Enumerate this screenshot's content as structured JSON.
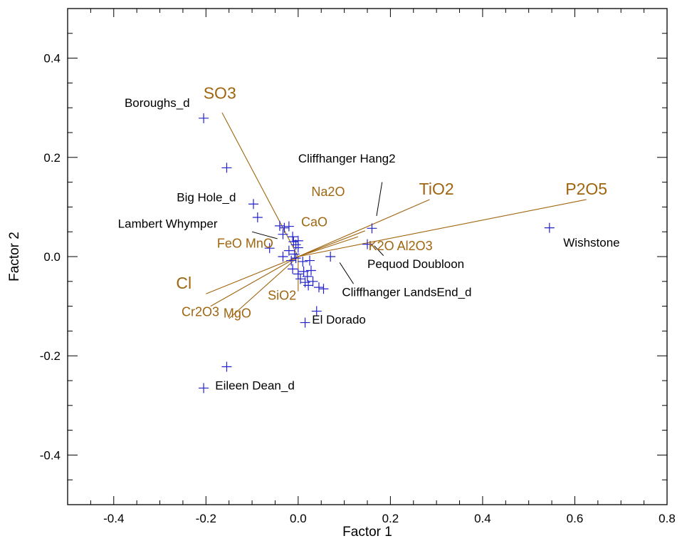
{
  "chart_data": {
    "type": "scatter",
    "title": "",
    "xlabel": "Factor 1",
    "ylabel": "Factor 2",
    "xlim": [
      -0.5,
      0.8
    ],
    "ylim": [
      -0.5,
      0.5
    ],
    "x_ticks": [
      -0.4,
      -0.2,
      0.0,
      0.2,
      0.4,
      0.6,
      0.8
    ],
    "x_tick_labels": [
      "-0.4",
      "-0.2",
      "0.0",
      "0.2",
      "0.4",
      "0.6",
      "0.8"
    ],
    "y_ticks": [
      -0.4,
      -0.2,
      0.0,
      0.2,
      0.4
    ],
    "y_tick_labels": [
      "-0.4",
      "-0.2",
      "0.0",
      "0.2",
      "0.4"
    ],
    "grid": false,
    "colors": {
      "points": "#2222cc",
      "vectors": "#a0650f",
      "sample_text": "#000000",
      "axes": "#000000"
    },
    "points": [
      {
        "x": -0.205,
        "y": 0.279
      },
      {
        "x": -0.155,
        "y": 0.179
      },
      {
        "x": -0.097,
        "y": 0.106
      },
      {
        "x": -0.088,
        "y": 0.079
      },
      {
        "x": -0.04,
        "y": 0.062
      },
      {
        "x": -0.03,
        "y": 0.058
      },
      {
        "x": -0.02,
        "y": 0.061
      },
      {
        "x": -0.033,
        "y": 0.045
      },
      {
        "x": -0.012,
        "y": 0.04
      },
      {
        "x": -0.01,
        "y": 0.03
      },
      {
        "x": 0.0,
        "y": 0.032
      },
      {
        "x": -0.005,
        "y": 0.024
      },
      {
        "x": -0.062,
        "y": 0.017
      },
      {
        "x": -0.02,
        "y": 0.012
      },
      {
        "x": -0.008,
        "y": 0.005
      },
      {
        "x": 0.0,
        "y": 0.018
      },
      {
        "x": -0.033,
        "y": 0.0
      },
      {
        "x": -0.015,
        "y": -0.008
      },
      {
        "x": -0.005,
        "y": -0.003
      },
      {
        "x": 0.01,
        "y": -0.01
      },
      {
        "x": 0.025,
        "y": -0.008
      },
      {
        "x": -0.012,
        "y": -0.025
      },
      {
        "x": 0.0,
        "y": -0.035
      },
      {
        "x": 0.012,
        "y": -0.03
      },
      {
        "x": 0.028,
        "y": -0.028
      },
      {
        "x": 0.02,
        "y": -0.04
      },
      {
        "x": 0.005,
        "y": -0.045
      },
      {
        "x": 0.015,
        "y": -0.052
      },
      {
        "x": 0.032,
        "y": -0.05
      },
      {
        "x": 0.022,
        "y": -0.058
      },
      {
        "x": 0.045,
        "y": -0.062
      },
      {
        "x": 0.055,
        "y": -0.065
      },
      {
        "x": 0.07,
        "y": 0.0
      },
      {
        "x": 0.16,
        "y": 0.057
      },
      {
        "x": 0.15,
        "y": 0.025
      },
      {
        "x": 0.04,
        "y": -0.11
      },
      {
        "x": 0.015,
        "y": -0.133
      },
      {
        "x": -0.155,
        "y": -0.222
      },
      {
        "x": -0.205,
        "y": -0.265
      },
      {
        "x": 0.545,
        "y": 0.058
      }
    ],
    "vectors": [
      {
        "label": "SO3",
        "x": -0.165,
        "y": 0.29,
        "label_x": -0.17,
        "label_y": 0.318,
        "font_size": 23
      },
      {
        "label": "Na2O",
        "x": 0.145,
        "y": 0.052,
        "label_x": 0.065,
        "label_y": 0.122,
        "font_size": 18
      },
      {
        "label": "TiO2",
        "x": 0.285,
        "y": 0.115,
        "label_x": 0.3,
        "label_y": 0.125,
        "font_size": 23
      },
      {
        "label": "P2O5",
        "x": 0.625,
        "y": 0.115,
        "label_x": 0.625,
        "label_y": 0.125,
        "font_size": 23
      },
      {
        "label": "CaO",
        "x": 0.13,
        "y": 0.04,
        "label_x": 0.035,
        "label_y": 0.061,
        "font_size": 18
      },
      {
        "label": "Cl",
        "x": -0.2,
        "y": -0.075,
        "label_x": -0.248,
        "label_y": -0.065,
        "font_size": 23
      },
      {
        "label": "Cr2O3",
        "x": -0.19,
        "y": -0.1,
        "label_x": -0.212,
        "label_y": -0.12,
        "font_size": 18
      },
      {
        "label": "MgO",
        "x": -0.15,
        "y": -0.125,
        "label_x": -0.132,
        "label_y": -0.123,
        "font_size": 18
      },
      {
        "label": "SiO2",
        "x": 0.0,
        "y": -0.07,
        "label_x": -0.035,
        "label_y": -0.087,
        "font_size": 18
      },
      {
        "label": "K2O Al2O3",
        "x": 0.0,
        "y": 0.0,
        "label_x": 0.222,
        "label_y": 0.013,
        "font_size": 18
      },
      {
        "label": "FeO MnO",
        "x": 0.0,
        "y": 0.0,
        "label_x": -0.115,
        "label_y": 0.018,
        "font_size": 18
      }
    ],
    "sample_labels": [
      {
        "text": "Boroughs_d",
        "x": -0.235,
        "y": 0.302,
        "anchor": "end"
      },
      {
        "text": "Cliffhanger Hang2",
        "x": 0.0,
        "y": 0.19,
        "anchor": "start"
      },
      {
        "text": "Big Hole_d",
        "x": -0.135,
        "y": 0.111,
        "anchor": "end"
      },
      {
        "text": "Lambert Whymper",
        "x": -0.175,
        "y": 0.058,
        "anchor": "end"
      },
      {
        "text": "Wishstone",
        "x": 0.575,
        "y": 0.02,
        "anchor": "start"
      },
      {
        "text": "Pequod Doubloon",
        "x": 0.15,
        "y": -0.023,
        "anchor": "start"
      },
      {
        "text": "Cliffhanger LandsEnd_d",
        "x": 0.095,
        "y": -0.08,
        "anchor": "start"
      },
      {
        "text": "El Dorado",
        "x": 0.03,
        "y": -0.135,
        "anchor": "start"
      },
      {
        "text": "Eileen Dean_d",
        "x": -0.18,
        "y": -0.268,
        "anchor": "start"
      }
    ],
    "leader_lines": [
      {
        "x1": 0.182,
        "y1": 0.15,
        "x2": 0.17,
        "y2": 0.082
      },
      {
        "x1": -0.1,
        "y1": 0.05,
        "x2": -0.045,
        "y2": 0.036
      },
      {
        "x1": 0.185,
        "y1": 0.002,
        "x2": 0.165,
        "y2": 0.022
      },
      {
        "x1": 0.12,
        "y1": -0.055,
        "x2": 0.09,
        "y2": -0.012
      }
    ]
  }
}
